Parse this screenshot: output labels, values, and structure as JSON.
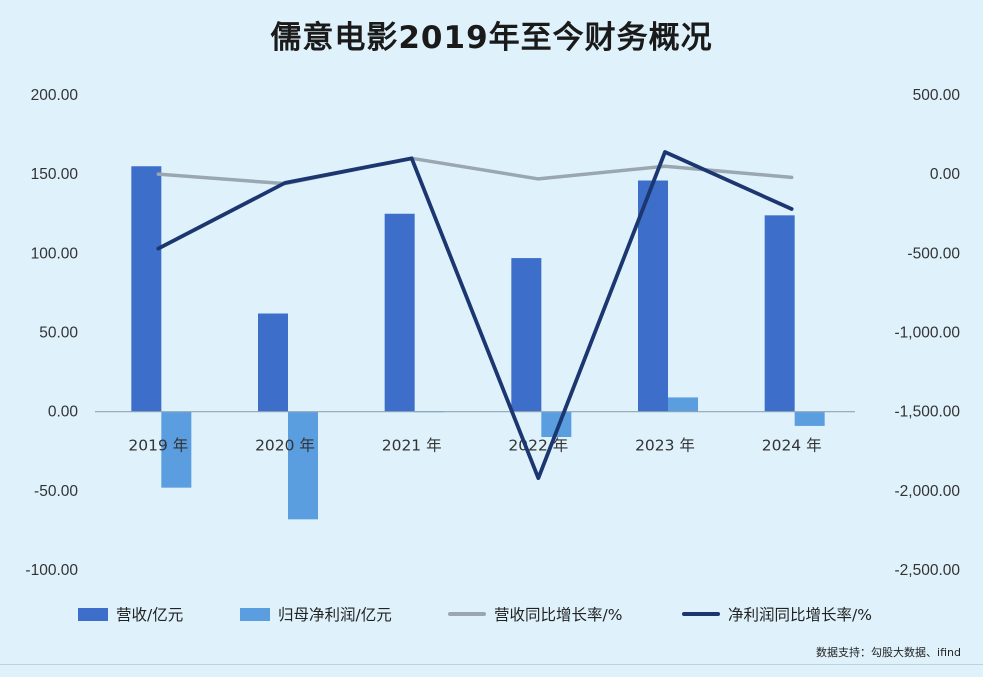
{
  "title": "儒意电影2019年至今财务概况",
  "source": "数据支持：勾股大数据、ifind",
  "legend": {
    "revenue": "营收/亿元",
    "net_profit": "归母净利润/亿元",
    "revenue_growth": "营收同比增长率/%",
    "profit_growth": "净利润同比增长率/%"
  },
  "colors": {
    "revenue": "#3d6fca",
    "net_profit": "#5a9ee0",
    "revenue_growth": "#9aa7b1",
    "profit_growth": "#1c3670",
    "background": "#dff2fb"
  },
  "chart_data": {
    "type": "bar",
    "title": "儒意电影2019年至今财务概况",
    "categories": [
      "2019 年",
      "2020 年",
      "2021 年",
      "2022 年",
      "2023 年",
      "2024 年"
    ],
    "y_left": {
      "range": [
        -100,
        200
      ],
      "ticks": [
        "200.00",
        "150.00",
        "100.00",
        "50.00",
        "0.00",
        "-50.00",
        "-100.00"
      ],
      "tick_values": [
        200,
        150,
        100,
        50,
        0,
        -50,
        -100
      ]
    },
    "y_right": {
      "range": [
        -2500,
        500
      ],
      "ticks": [
        "500.00",
        "0.00",
        "-500.00",
        "-1,000.00",
        "-1,500.00",
        "-2,000.00",
        "-2,500.00"
      ],
      "tick_values": [
        500,
        0,
        -500,
        -1000,
        -1500,
        -2000,
        -2500
      ]
    },
    "series": [
      {
        "name": "营收/亿元",
        "type": "bar",
        "axis": "left",
        "values": [
          155,
          62,
          125,
          97,
          146,
          124
        ]
      },
      {
        "name": "归母净利润/亿元",
        "type": "bar",
        "axis": "left",
        "values": [
          -48,
          -68,
          0.3,
          -16,
          9,
          -9
        ]
      },
      {
        "name": "营收同比增长率/%",
        "type": "line",
        "axis": "right",
        "values": [
          0,
          -60,
          100,
          -30,
          50,
          -20
        ]
      },
      {
        "name": "净利润同比增长率/%",
        "type": "line",
        "axis": "right",
        "values": [
          -470,
          -55,
          100,
          -1920,
          140,
          -220
        ]
      }
    ],
    "grid": false,
    "legend_position": "bottom"
  }
}
